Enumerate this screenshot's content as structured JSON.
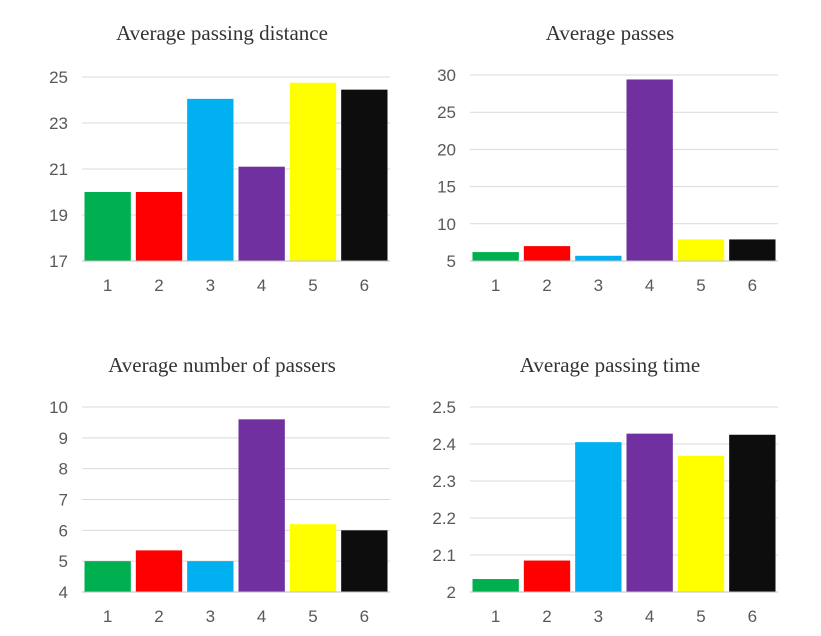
{
  "chart_data": [
    {
      "type": "bar",
      "title": "Average passing distance",
      "categories": [
        "1",
        "2",
        "3",
        "4",
        "5",
        "6"
      ],
      "values": [
        20.0,
        20.0,
        24.05,
        21.1,
        24.75,
        24.45
      ],
      "colors": [
        "#00B050",
        "#FF0000",
        "#00B0F0",
        "#7030A0",
        "#FFFF00",
        "#0D0D0D"
      ],
      "ylim": [
        17,
        25
      ],
      "yticks": [
        "17",
        "19",
        "21",
        "23",
        "25"
      ],
      "grid": true,
      "legend": "none"
    },
    {
      "type": "bar",
      "title": "Average passes",
      "categories": [
        "1",
        "2",
        "3",
        "4",
        "5",
        "6"
      ],
      "values": [
        6.2,
        7.0,
        5.7,
        29.4,
        7.9,
        7.9
      ],
      "colors": [
        "#00B050",
        "#FF0000",
        "#00B0F0",
        "#7030A0",
        "#FFFF00",
        "#0D0D0D"
      ],
      "ylim": [
        5,
        30
      ],
      "yticks": [
        "5",
        "10",
        "15",
        "20",
        "25",
        "30"
      ],
      "grid": true,
      "legend": "none"
    },
    {
      "type": "bar",
      "title": "Average number of passers",
      "categories": [
        "1",
        "2",
        "3",
        "4",
        "5",
        "6"
      ],
      "values": [
        5.0,
        5.35,
        5.0,
        9.6,
        6.2,
        6.0
      ],
      "colors": [
        "#00B050",
        "#FF0000",
        "#00B0F0",
        "#7030A0",
        "#FFFF00",
        "#0D0D0D"
      ],
      "ylim": [
        4,
        10
      ],
      "yticks": [
        "4",
        "5",
        "6",
        "7",
        "8",
        "9",
        "10"
      ],
      "grid": true,
      "legend": "none"
    },
    {
      "type": "bar",
      "title": "Average passing time",
      "categories": [
        "1",
        "2",
        "3",
        "4",
        "5",
        "6"
      ],
      "values": [
        2.035,
        2.085,
        2.405,
        2.428,
        2.368,
        2.425
      ],
      "colors": [
        "#00B050",
        "#FF0000",
        "#00B0F0",
        "#7030A0",
        "#FFFF00",
        "#0D0D0D"
      ],
      "ylim": [
        2,
        2.5
      ],
      "yticks": [
        "2",
        "2.1",
        "2.2",
        "2.3",
        "2.4",
        "2.5"
      ],
      "grid": true,
      "legend": "none"
    }
  ]
}
